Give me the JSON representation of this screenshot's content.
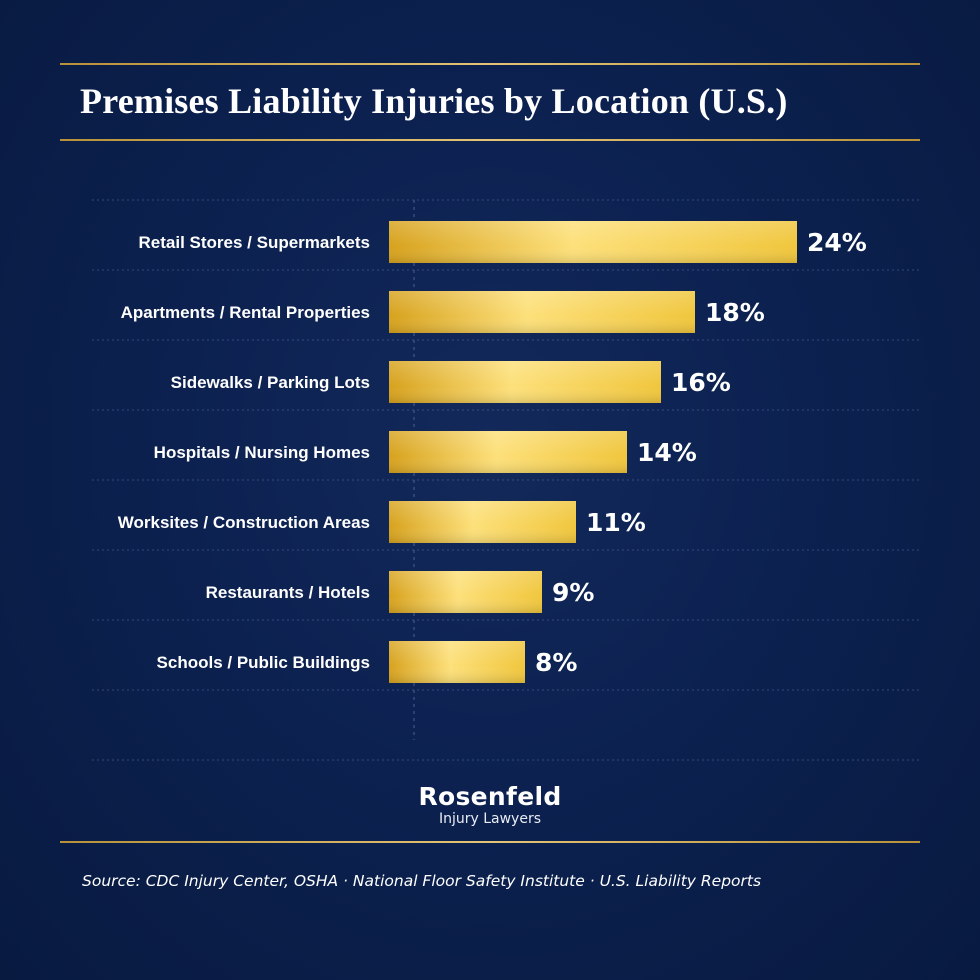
{
  "title": "Premises Liability Injuries by Location (U.S.)",
  "colors": {
    "background": "#0c2150",
    "gold_rule": "#d4b061",
    "bar_gold": "#f0c63c",
    "bar_gold_light": "#fde07a",
    "bar_gold_dark": "#d7a21d",
    "text": "#ffffff"
  },
  "chart_data": {
    "type": "bar",
    "orientation": "horizontal",
    "categories": [
      "Retail Stores / Supermarkets",
      "Apartments / Rental Properties",
      "Sidewalks / Parking Lots",
      "Hospitals / Nursing Homes",
      "Worksites / Construction Areas",
      "Restaurants / Hotels",
      "Schools / Public Buildings"
    ],
    "values": [
      24,
      18,
      16,
      14,
      11,
      9,
      8
    ],
    "value_labels": [
      "24%",
      "18%",
      "16%",
      "14%",
      "11%",
      "9%",
      "8%"
    ],
    "unit": "%",
    "xlim": [
      0,
      24
    ],
    "grid": true,
    "legend": "none"
  },
  "logo": {
    "name": "Rosenfeld",
    "subtitle": "Injury Lawyers"
  },
  "source": "Source: CDC Injury Center, OSHA · National Floor Safety Institute · U.S. Liability Reports"
}
